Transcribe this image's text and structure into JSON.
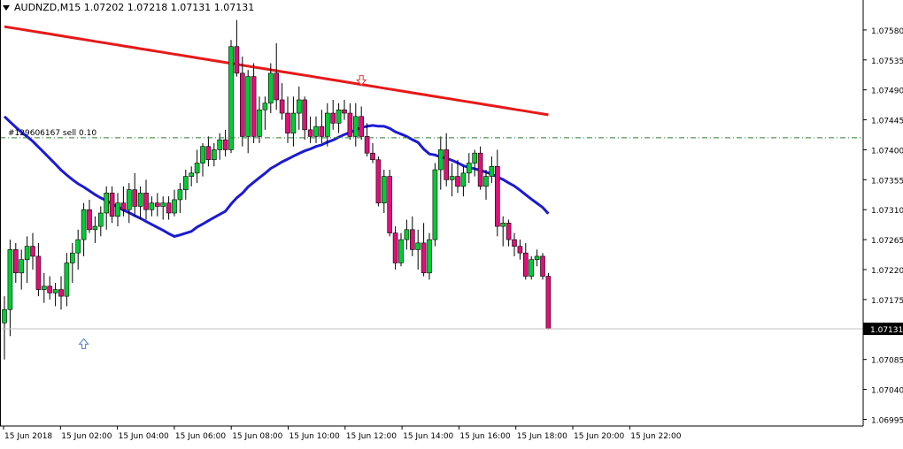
{
  "header": {
    "symbol_line": "AUDNZD,M15  1.07202 1.07218 1.07131 1.07131"
  },
  "order_label": "#129606167 sell 0.10",
  "current_price": "1.07131",
  "colors": {
    "background": "#ffffff",
    "bull": "#00cc33",
    "bear": "#dd1177",
    "ma_slow": "#e81818",
    "ma_fast": "#1a1ad6",
    "order_line": "#2e7d2e",
    "price_line": "#c0c0c0",
    "arrow_buy": "#4a7bd8",
    "arrow_sell": "#e03a3a",
    "axis": "#000000"
  },
  "chart_data": {
    "type": "candlestick",
    "symbol": "AUDNZD",
    "timeframe": "M15",
    "y_ticks": [
      "1.07580",
      "1.07535",
      "1.07490",
      "1.07445",
      "1.07400",
      "1.07355",
      "1.07310",
      "1.07265",
      "1.07220",
      "1.07175",
      "1.07130",
      "1.07085",
      "1.07040",
      "1.06995"
    ],
    "ylim": [
      1.06985,
      1.07625
    ],
    "x_ticks": [
      "15 Jun 2018",
      "15 Jun 02:00",
      "15 Jun 04:00",
      "15 Jun 06:00",
      "15 Jun 08:00",
      "15 Jun 10:00",
      "15 Jun 12:00",
      "15 Jun 14:00",
      "15 Jun 16:00",
      "15 Jun 18:00",
      "15 Jun 20:00",
      "15 Jun 22:00"
    ],
    "order_line_price": 1.07418,
    "current_price": 1.07131,
    "buy_arrow": {
      "bar": 14,
      "price": 1.07108
    },
    "sell_arrow": {
      "bar": 63,
      "price": 1.07505
    },
    "ohlc": [
      [
        1.0714,
        1.0718,
        1.07085,
        1.0716
      ],
      [
        1.0716,
        1.07265,
        1.0712,
        1.0725
      ],
      [
        1.0725,
        1.0726,
        1.072,
        1.07215
      ],
      [
        1.07215,
        1.0725,
        1.0719,
        1.07235
      ],
      [
        1.07235,
        1.0727,
        1.072,
        1.07255
      ],
      [
        1.07255,
        1.07275,
        1.0722,
        1.0724
      ],
      [
        1.0724,
        1.0726,
        1.0718,
        1.0719
      ],
      [
        1.0719,
        1.07215,
        1.0717,
        1.07195
      ],
      [
        1.07195,
        1.0721,
        1.07175,
        1.07185
      ],
      [
        1.07185,
        1.072,
        1.07165,
        1.0719
      ],
      [
        1.0719,
        1.0721,
        1.0716,
        1.0718
      ],
      [
        1.0718,
        1.07245,
        1.07165,
        1.0723
      ],
      [
        1.0723,
        1.0726,
        1.072,
        1.07245
      ],
      [
        1.07245,
        1.0728,
        1.0722,
        1.07265
      ],
      [
        1.07265,
        1.0732,
        1.0724,
        1.0731
      ],
      [
        1.0731,
        1.07325,
        1.07275,
        1.0728
      ],
      [
        1.0728,
        1.073,
        1.0726,
        1.07285
      ],
      [
        1.07285,
        1.07315,
        1.0727,
        1.07305
      ],
      [
        1.07305,
        1.07345,
        1.0728,
        1.07335
      ],
      [
        1.07335,
        1.07345,
        1.0729,
        1.073
      ],
      [
        1.073,
        1.07335,
        1.07285,
        1.0732
      ],
      [
        1.0732,
        1.07345,
        1.073,
        1.0731
      ],
      [
        1.0731,
        1.0735,
        1.0729,
        1.0734
      ],
      [
        1.0734,
        1.07365,
        1.073,
        1.07315
      ],
      [
        1.07315,
        1.07345,
        1.07295,
        1.07335
      ],
      [
        1.07335,
        1.07355,
        1.07295,
        1.0731
      ],
      [
        1.0731,
        1.0733,
        1.073,
        1.0732
      ],
      [
        1.0732,
        1.07335,
        1.073,
        1.07315
      ],
      [
        1.07315,
        1.0733,
        1.07295,
        1.0732
      ],
      [
        1.0732,
        1.0733,
        1.07295,
        1.07305
      ],
      [
        1.07305,
        1.0734,
        1.073,
        1.07325
      ],
      [
        1.07325,
        1.0735,
        1.07305,
        1.0734
      ],
      [
        1.0734,
        1.0737,
        1.07325,
        1.0736
      ],
      [
        1.0736,
        1.07375,
        1.07345,
        1.07365
      ],
      [
        1.07365,
        1.074,
        1.0735,
        1.0738
      ],
      [
        1.0738,
        1.0741,
        1.0736,
        1.07405
      ],
      [
        1.07405,
        1.0742,
        1.07375,
        1.07385
      ],
      [
        1.07385,
        1.0741,
        1.07375,
        1.074
      ],
      [
        1.074,
        1.07425,
        1.07385,
        1.07415
      ],
      [
        1.07415,
        1.0743,
        1.0739,
        1.074
      ],
      [
        1.074,
        1.07565,
        1.07395,
        1.07555
      ],
      [
        1.07555,
        1.07595,
        1.0751,
        1.07515
      ],
      [
        1.07515,
        1.0754,
        1.07405,
        1.0742
      ],
      [
        1.0742,
        1.0752,
        1.07395,
        1.0751
      ],
      [
        1.0751,
        1.0753,
        1.0741,
        1.0742
      ],
      [
        1.0742,
        1.0748,
        1.0741,
        1.0746
      ],
      [
        1.0746,
        1.0748,
        1.0743,
        1.0747
      ],
      [
        1.0747,
        1.0753,
        1.07455,
        1.07515
      ],
      [
        1.07515,
        1.0756,
        1.0746,
        1.07475
      ],
      [
        1.07475,
        1.075,
        1.07445,
        1.07455
      ],
      [
        1.07455,
        1.0748,
        1.0741,
        1.07425
      ],
      [
        1.07425,
        1.0748,
        1.07405,
        1.07455
      ],
      [
        1.07455,
        1.07495,
        1.0743,
        1.07475
      ],
      [
        1.07475,
        1.0748,
        1.07415,
        1.0743
      ],
      [
        1.0743,
        1.0745,
        1.0741,
        1.0742
      ],
      [
        1.0742,
        1.0745,
        1.0741,
        1.07435
      ],
      [
        1.07435,
        1.0746,
        1.0741,
        1.0742
      ],
      [
        1.0742,
        1.0747,
        1.07405,
        1.07455
      ],
      [
        1.07455,
        1.07475,
        1.0743,
        1.0744
      ],
      [
        1.0744,
        1.0747,
        1.07425,
        1.0746
      ],
      [
        1.0746,
        1.07475,
        1.07445,
        1.07455
      ],
      [
        1.07455,
        1.0747,
        1.07415,
        1.0742
      ],
      [
        1.0742,
        1.0747,
        1.07405,
        1.0745
      ],
      [
        1.0745,
        1.07465,
        1.07415,
        1.0742
      ],
      [
        1.0742,
        1.0744,
        1.0739,
        1.07395
      ],
      [
        1.07395,
        1.0741,
        1.0738,
        1.07385
      ],
      [
        1.07385,
        1.0739,
        1.07315,
        1.0732
      ],
      [
        1.0732,
        1.0737,
        1.07305,
        1.0736
      ],
      [
        1.0736,
        1.0737,
        1.0727,
        1.07275
      ],
      [
        1.07275,
        1.07285,
        1.0722,
        1.0723
      ],
      [
        1.0723,
        1.07275,
        1.07225,
        1.07265
      ],
      [
        1.07265,
        1.07295,
        1.0725,
        1.0728
      ],
      [
        1.0728,
        1.073,
        1.0724,
        1.0725
      ],
      [
        1.0725,
        1.0728,
        1.0722,
        1.0726
      ],
      [
        1.0726,
        1.0729,
        1.0721,
        1.07215
      ],
      [
        1.07215,
        1.07275,
        1.07205,
        1.07265
      ],
      [
        1.07265,
        1.0738,
        1.07255,
        1.0737
      ],
      [
        1.0737,
        1.0742,
        1.0734,
        1.074
      ],
      [
        1.074,
        1.07425,
        1.07345,
        1.07355
      ],
      [
        1.07355,
        1.0738,
        1.0733,
        1.0736
      ],
      [
        1.0736,
        1.07385,
        1.07335,
        1.07345
      ],
      [
        1.07345,
        1.07375,
        1.0733,
        1.07365
      ],
      [
        1.07365,
        1.07395,
        1.0735,
        1.0738
      ],
      [
        1.0738,
        1.074,
        1.0736,
        1.07395
      ],
      [
        1.07395,
        1.07405,
        1.0734,
        1.07345
      ],
      [
        1.07345,
        1.0737,
        1.07325,
        1.0736
      ],
      [
        1.0736,
        1.0739,
        1.0735,
        1.07375
      ],
      [
        1.07375,
        1.074,
        1.0727,
        1.07285
      ],
      [
        1.07285,
        1.073,
        1.07255,
        1.0729
      ],
      [
        1.0729,
        1.07295,
        1.07255,
        1.07265
      ],
      [
        1.07265,
        1.07275,
        1.0724,
        1.07255
      ],
      [
        1.07255,
        1.07265,
        1.07235,
        1.07245
      ],
      [
        1.07245,
        1.0726,
        1.07205,
        1.0721
      ],
      [
        1.0721,
        1.0724,
        1.07205,
        1.07235
      ],
      [
        1.07235,
        1.0725,
        1.07225,
        1.0724
      ],
      [
        1.0724,
        1.07245,
        1.07205,
        1.0721
      ],
      [
        1.0721,
        1.07215,
        1.0713,
        1.07131
      ]
    ]
  }
}
